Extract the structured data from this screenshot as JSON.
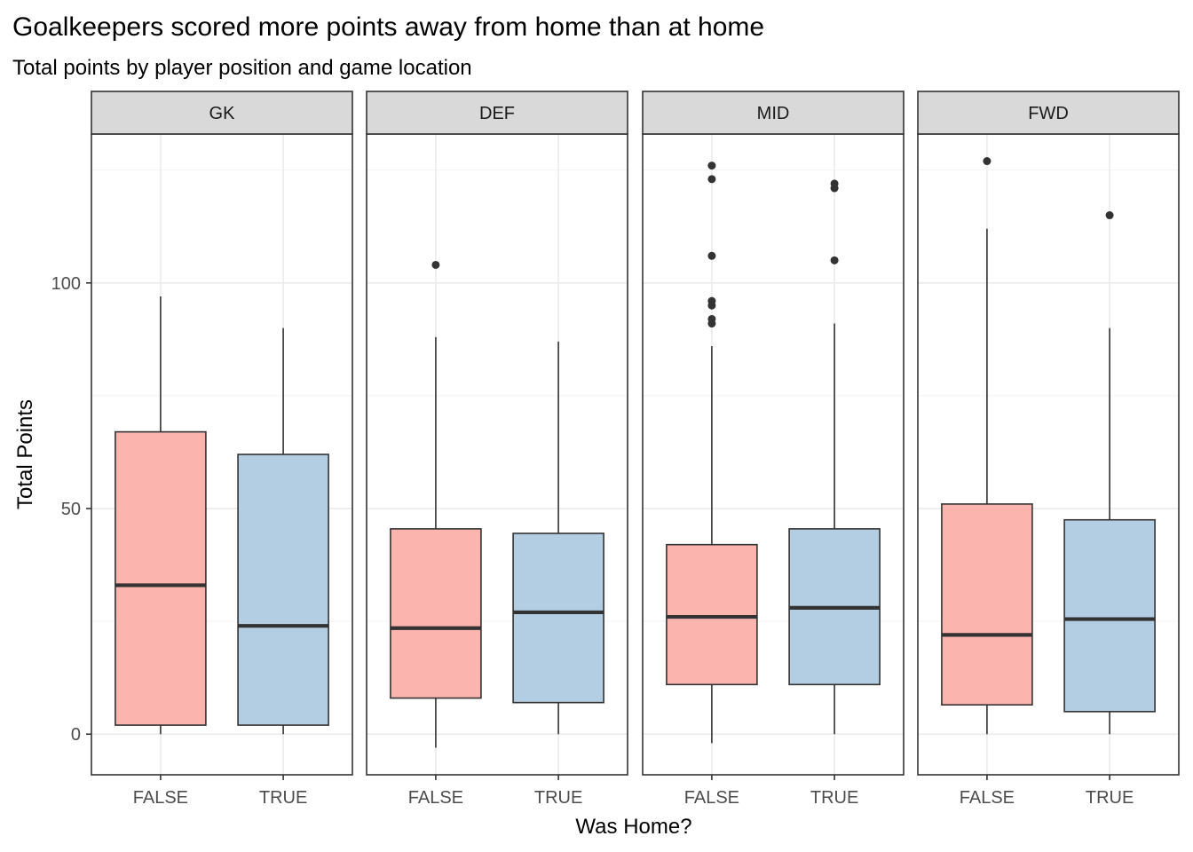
{
  "chart_data": {
    "type": "boxplot",
    "title": "Goalkeepers scored more points away from home than at home",
    "subtitle": "Total points by player position and game location",
    "xlabel": "Was Home?",
    "ylabel": "Total Points",
    "ylim": [
      -9,
      133
    ],
    "yticks": [
      0,
      50,
      100
    ],
    "grid": true,
    "facets": [
      "GK",
      "DEF",
      "MID",
      "FWD"
    ],
    "categories": [
      "FALSE",
      "TRUE"
    ],
    "colors": {
      "FALSE": "#FBB4AE",
      "TRUE": "#B3CDE3"
    },
    "boxes": [
      {
        "facet": "GK",
        "category": "FALSE",
        "min": 0,
        "q1": 2,
        "median": 33,
        "q3": 67,
        "max": 97,
        "outliers": []
      },
      {
        "facet": "GK",
        "category": "TRUE",
        "min": 0,
        "q1": 2,
        "median": 24,
        "q3": 62,
        "max": 90,
        "outliers": []
      },
      {
        "facet": "DEF",
        "category": "FALSE",
        "min": -3,
        "q1": 8,
        "median": 23.5,
        "q3": 45.5,
        "max": 88,
        "outliers": [
          104
        ]
      },
      {
        "facet": "DEF",
        "category": "TRUE",
        "min": 0,
        "q1": 7,
        "median": 27,
        "q3": 44.5,
        "max": 87,
        "outliers": []
      },
      {
        "facet": "MID",
        "category": "FALSE",
        "min": -2,
        "q1": 11,
        "median": 26,
        "q3": 42,
        "max": 86,
        "outliers": [
          91,
          92,
          95,
          96,
          106,
          123,
          126
        ]
      },
      {
        "facet": "MID",
        "category": "TRUE",
        "min": 0,
        "q1": 11,
        "median": 28,
        "q3": 45.5,
        "max": 91,
        "outliers": [
          105,
          121,
          122
        ]
      },
      {
        "facet": "FWD",
        "category": "FALSE",
        "min": 0,
        "q1": 6.5,
        "median": 22,
        "q3": 51,
        "max": 112,
        "outliers": [
          127
        ]
      },
      {
        "facet": "FWD",
        "category": "TRUE",
        "min": 0,
        "q1": 5,
        "median": 25.5,
        "q3": 47.5,
        "max": 90,
        "outliers": [
          115
        ]
      }
    ]
  }
}
